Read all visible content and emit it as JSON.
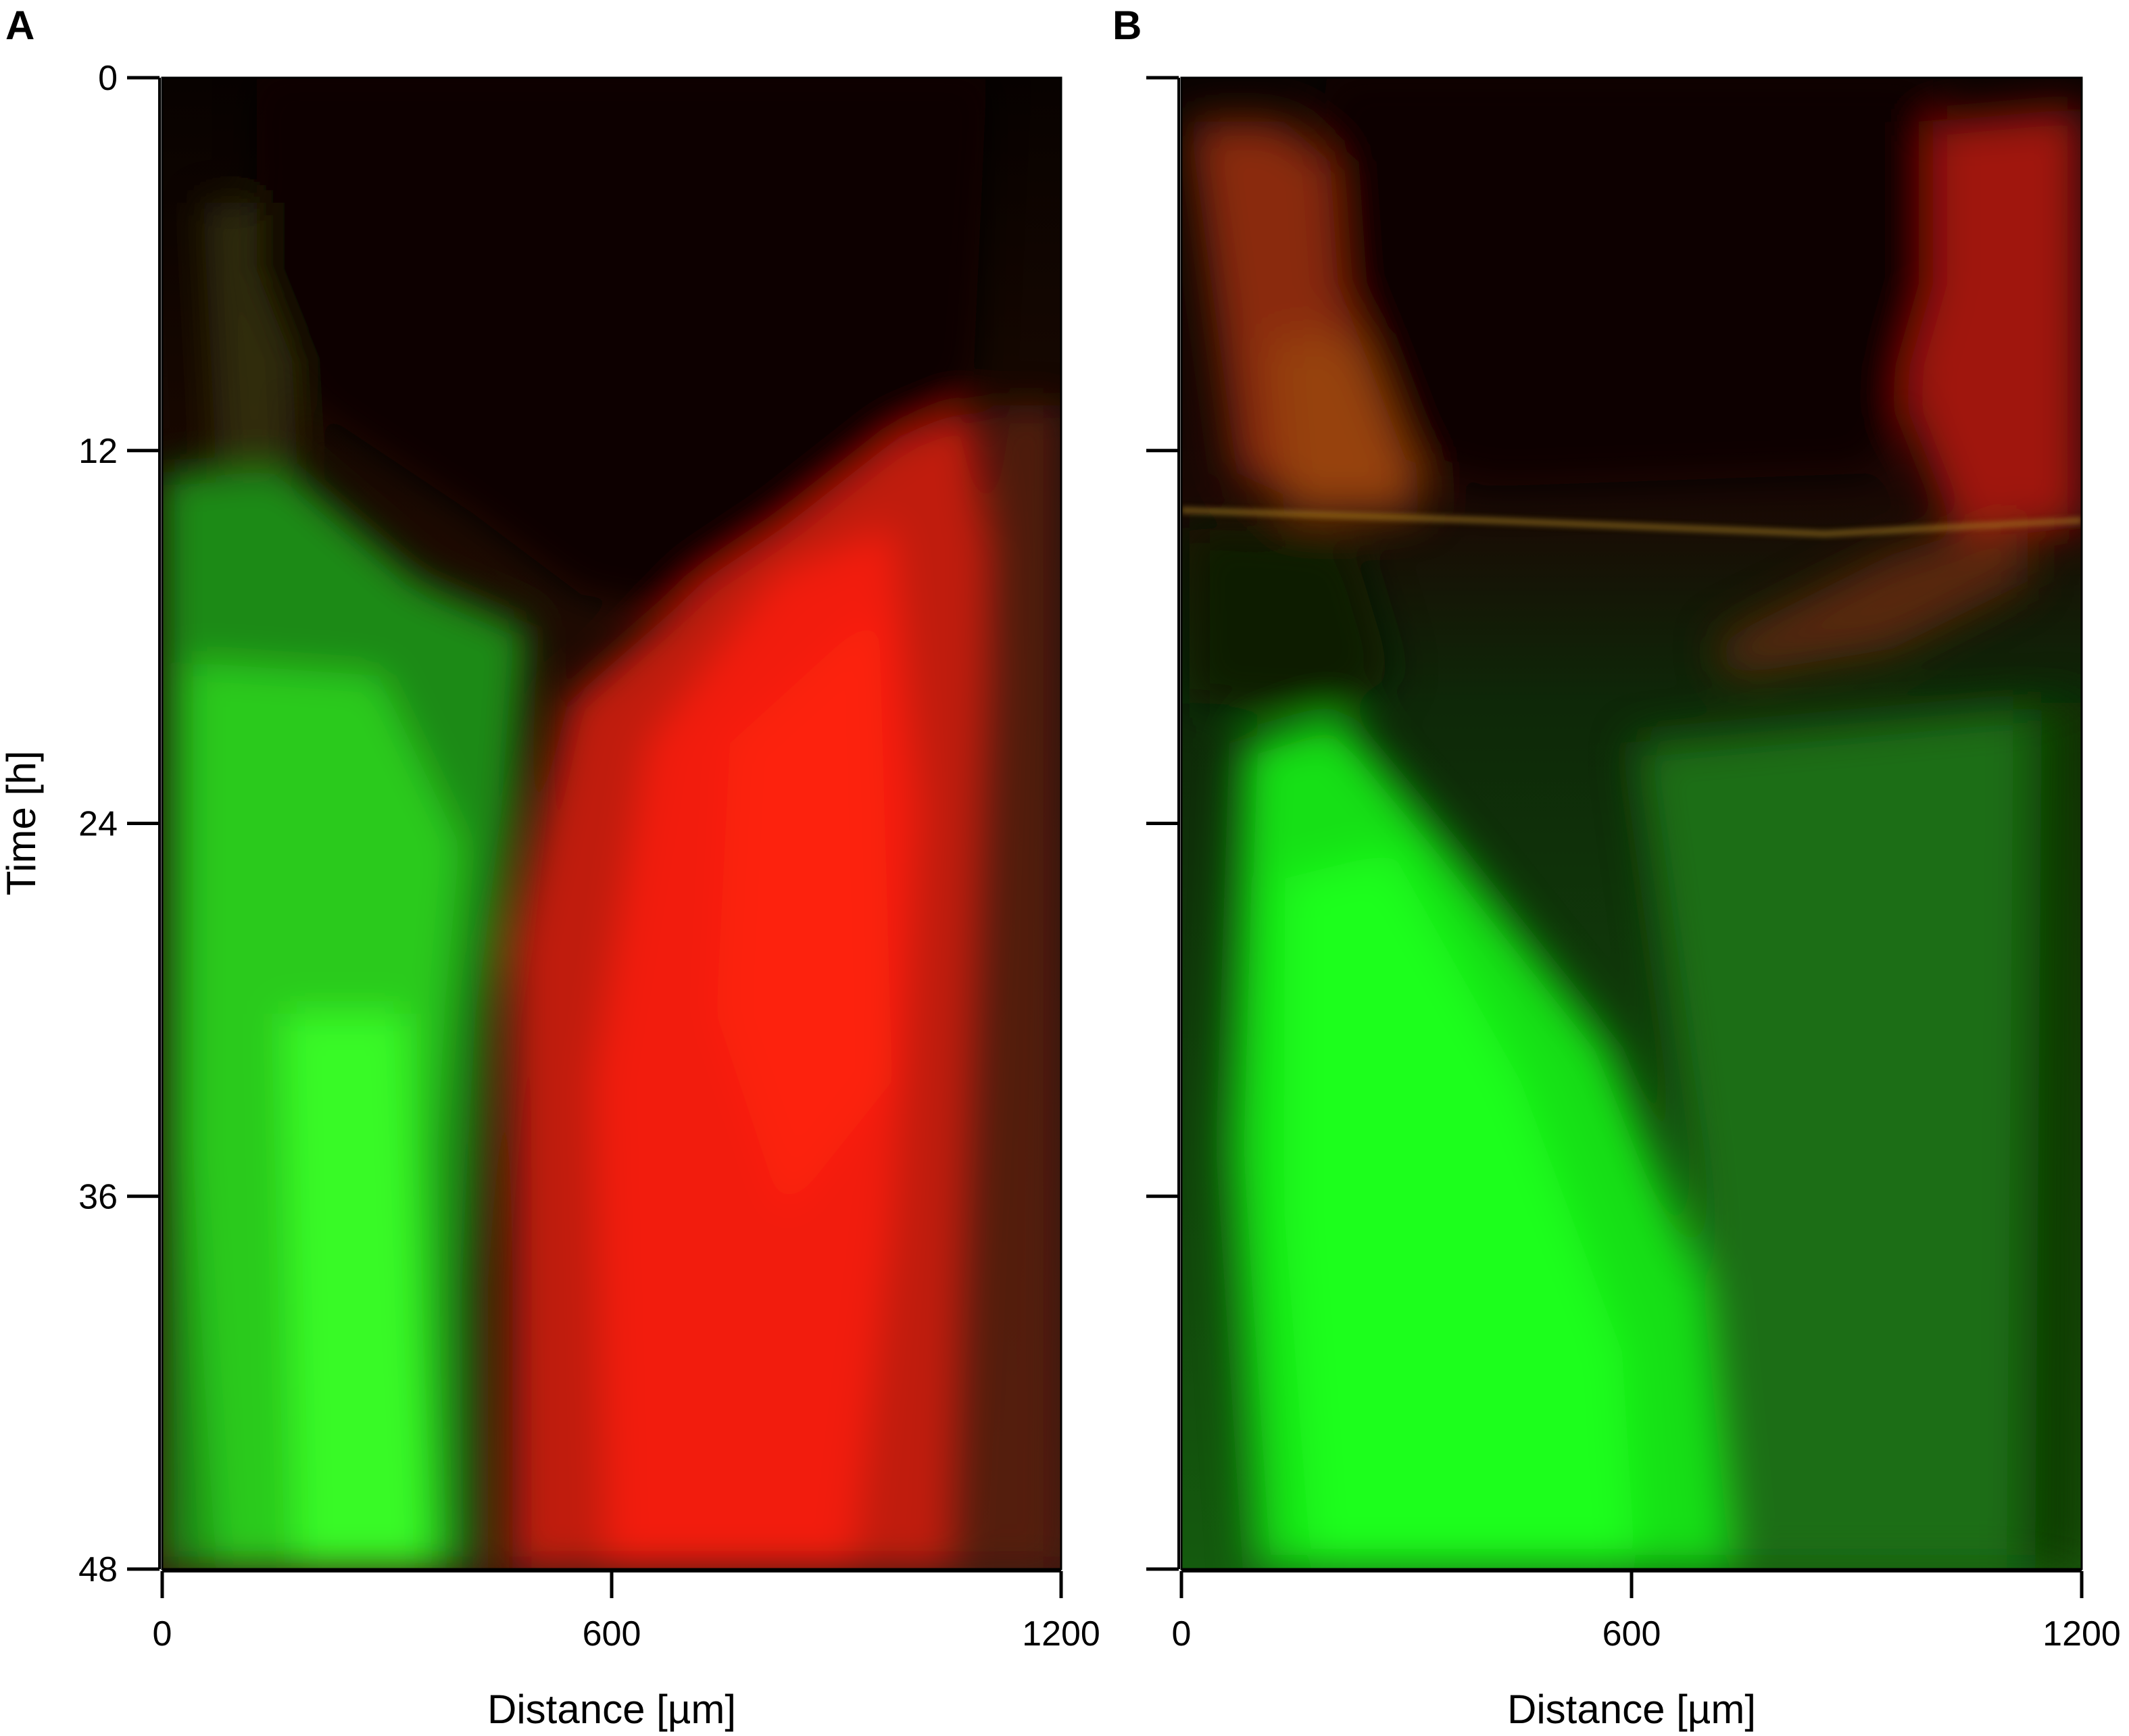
{
  "chart_data": [
    {
      "type": "heatmap",
      "panel": "A",
      "xlabel": "Distance [µm]",
      "ylabel": "Time [h]",
      "xlim": [
        0,
        1200
      ],
      "ylim": [
        0,
        48
      ],
      "y_direction": "top-to-bottom",
      "xticks": [
        0,
        600,
        1200
      ],
      "yticks": [
        0,
        12,
        24,
        36,
        48
      ],
      "channels": {
        "red": "#ff2010",
        "green": "#18ff18"
      },
      "regions": [
        {
          "channel": "none (dark)",
          "color": "#0a0400",
          "x": [
            100,
            1100
          ],
          "t": [
            0,
            17
          ]
        },
        {
          "channel": "green",
          "color": "#2fd41f",
          "x": [
            0,
            450
          ],
          "t": [
            14,
            48
          ]
        },
        {
          "channel": "red",
          "color": "#f01a0a",
          "x": [
            500,
            1050
          ],
          "t": [
            11,
            48
          ]
        },
        {
          "channel": "red (dim)",
          "color": "#5a1e06",
          "x": [
            1080,
            1200
          ],
          "t": [
            0,
            48
          ]
        }
      ]
    },
    {
      "type": "heatmap",
      "panel": "B",
      "xlabel": "Distance [µm]",
      "ylabel": "",
      "xlim": [
        0,
        1200
      ],
      "ylim": [
        0,
        48
      ],
      "y_direction": "top-to-bottom",
      "xticks": [
        0,
        600,
        1200
      ],
      "yticks": [
        0,
        12,
        24,
        36,
        48
      ],
      "show_ytick_labels": false,
      "channels": {
        "red": "#ff2010",
        "green": "#18ff18"
      },
      "regions": [
        {
          "channel": "none (dark)",
          "color": "#100404",
          "x": [
            300,
            1000
          ],
          "t": [
            0,
            14
          ]
        },
        {
          "channel": "red",
          "color": "#a02a0a",
          "x": [
            0,
            300
          ],
          "t": [
            2,
            14
          ]
        },
        {
          "channel": "red",
          "color": "#b0160c",
          "x": [
            1000,
            1200
          ],
          "t": [
            2,
            16
          ]
        },
        {
          "channel": "green",
          "color": "#10f010",
          "x": [
            100,
            700
          ],
          "t": [
            20,
            48
          ]
        },
        {
          "channel": "green (dim)",
          "color": "#1e7a12",
          "x": [
            700,
            1200
          ],
          "t": [
            20,
            48
          ]
        }
      ]
    }
  ]
}
